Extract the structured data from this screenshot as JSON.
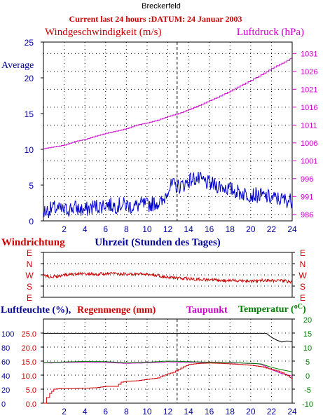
{
  "chart_data": [
    {
      "type": "line",
      "station": "Breckerfeld",
      "title": "Current last 24 hours :DATUM: 24 Januar 2003",
      "left_label": "Windgeschwindigkeit (m/s)",
      "right_label": "Luftdruck (hPa)",
      "average_label": "Average",
      "xlabel": "Uhrzeit (Stunden des Tages)",
      "xlim": [
        0,
        24
      ],
      "xticks": [
        "2",
        "4",
        "6",
        "8",
        "10",
        "12",
        "14",
        "16",
        "18",
        "20",
        "22",
        "24"
      ],
      "ylim_left": [
        0,
        25
      ],
      "yticks_left": [
        "0",
        "5",
        "10",
        "15",
        "20",
        "25"
      ],
      "ylim_right": [
        984.2,
        1034.2
      ],
      "yticks_right": [
        "986",
        "991",
        "996",
        "1001",
        "1006",
        "1011",
        "1016",
        "1021",
        "1026",
        "1031"
      ],
      "now_marker_x": 12.9,
      "series": [
        {
          "name": "Windgeschwindigkeit",
          "axis": "left",
          "color": "#0000cc",
          "x": [
            0,
            0.5,
            1,
            1.5,
            2,
            2.5,
            3,
            3.5,
            4,
            4.5,
            5,
            5.5,
            6,
            6.5,
            7,
            7.5,
            8,
            8.5,
            9,
            9.5,
            10,
            10.5,
            11,
            11.5,
            12,
            12.5,
            13,
            13.5,
            14,
            14.5,
            15,
            15.5,
            16,
            16.5,
            17,
            17.5,
            18,
            18.5,
            19,
            19.5,
            20,
            20.5,
            21,
            21.5,
            22,
            22.5,
            23,
            23.5,
            24
          ],
          "y": [
            1.3,
            1.5,
            1.8,
            1.6,
            1.4,
            1.7,
            1.9,
            1.6,
            1.5,
            1.8,
            2.1,
            2.0,
            2.4,
            2.2,
            2.1,
            2.3,
            2.2,
            2.0,
            2.1,
            2.3,
            2.2,
            2.4,
            2.6,
            2.5,
            4.5,
            5.0,
            4.8,
            5.0,
            5.6,
            5.9,
            5.8,
            5.5,
            5.2,
            5.0,
            4.9,
            4.7,
            4.4,
            4.2,
            3.9,
            3.8,
            3.7,
            3.6,
            3.5,
            3.4,
            3.2,
            3.1,
            3.0,
            2.9,
            2.8
          ]
        },
        {
          "name": "Luftdruck",
          "axis": "right",
          "color": "#cc00cc",
          "x": [
            0,
            1,
            2,
            3,
            4,
            5,
            6,
            7,
            8,
            9,
            10,
            11,
            12,
            13,
            14,
            15,
            16,
            17,
            18,
            19,
            20,
            21,
            22,
            23,
            24
          ],
          "y": [
            1004.4,
            1004.9,
            1005.4,
            1006.4,
            1007.0,
            1007.9,
            1008.7,
            1009.3,
            1010.0,
            1011.0,
            1011.6,
            1012.4,
            1013.4,
            1014.2,
            1015.3,
            1016.5,
            1017.8,
            1019.1,
            1020.5,
            1022.0,
            1023.5,
            1025.1,
            1026.8,
            1028.3,
            1029.8
          ]
        }
      ]
    },
    {
      "type": "line",
      "title": "Windrichtung",
      "xlim": [
        0,
        24
      ],
      "ylim": [
        0,
        4
      ],
      "yticks": [
        "E",
        "N",
        "W",
        "S",
        "E"
      ],
      "yticks_right": [
        "E",
        "N",
        "W",
        "S",
        "E"
      ],
      "series": [
        {
          "name": "Windrichtung",
          "color": "#cc0000",
          "x": [
            0,
            1,
            2,
            3,
            4,
            5,
            6,
            7,
            8,
            9,
            10,
            11,
            12,
            13,
            14,
            15,
            16,
            17,
            18,
            19,
            20,
            21,
            22,
            23,
            24
          ],
          "y": [
            2.1,
            2.2,
            2.0,
            1.95,
            1.9,
            1.95,
            1.9,
            1.9,
            1.95,
            1.95,
            1.95,
            2.05,
            2.2,
            2.3,
            2.35,
            2.4,
            2.45,
            2.5,
            2.5,
            2.5,
            2.55,
            2.5,
            2.5,
            2.55,
            2.6
          ]
        }
      ]
    },
    {
      "type": "line",
      "labels": {
        "humidity": "Luftfeuchte (%),",
        "rain": "Regenmenge (mm)",
        "dewpoint": "Taupunkt",
        "temperature": "Temperatur (",
        "degree": "oC",
        "temperature_close": ")"
      },
      "xlim": [
        0,
        24
      ],
      "xticks": [
        "2",
        "4",
        "6",
        "8",
        "10",
        "12",
        "14",
        "16",
        "18",
        "20",
        "22",
        "24"
      ],
      "humidity_ticks": [
        "0",
        "20",
        "40",
        "60",
        "80",
        "100"
      ],
      "rain_ticks": [
        "0.0",
        "5.0",
        "10.0",
        "15.0",
        "20.0",
        "25.0"
      ],
      "temperature_ticks": [
        "-10",
        "-5",
        "0",
        "5",
        "10",
        "15",
        "20"
      ],
      "ylim_rain": [
        0,
        30
      ],
      "ylim_temperature": [
        -10,
        20
      ],
      "now_marker_x": 12.9,
      "series": [
        {
          "name": "Luftfeuchte",
          "axis": "temperature",
          "color": "#000000",
          "x": [
            0,
            2,
            4,
            6,
            8,
            10,
            12,
            14,
            16,
            18,
            20,
            21.5,
            22,
            22.5,
            23,
            23.5,
            24
          ],
          "y": [
            14.9,
            14.9,
            14.9,
            14.9,
            14.9,
            14.9,
            14.9,
            14.9,
            14.9,
            14.9,
            14.9,
            14.9,
            13.5,
            12.5,
            11.8,
            12.2,
            11.9
          ]
        },
        {
          "name": "Regenmenge",
          "axis": "rain",
          "color": "#cc0000",
          "x": [
            0,
            0.3,
            0.6,
            1.0,
            1.5,
            3,
            5,
            6,
            7,
            7.5,
            8,
            9,
            10,
            11,
            12,
            12.5,
            13,
            13.5,
            14,
            15,
            16,
            17,
            18,
            19,
            20,
            21,
            22,
            22.5,
            23,
            23.5,
            24
          ],
          "y": [
            0,
            2.0,
            3.5,
            5.0,
            5.2,
            5.2,
            5.5,
            6.0,
            6.0,
            7.5,
            7.8,
            8.0,
            8.5,
            9.0,
            10.5,
            11.0,
            12.0,
            13.0,
            13.8,
            14.2,
            14.3,
            14.2,
            14.0,
            13.8,
            13.5,
            13.0,
            12.0,
            11.5,
            10.8,
            9.8,
            8.8
          ]
        },
        {
          "name": "Taupunkt",
          "axis": "temperature",
          "color": "#cc00cc",
          "x": [
            0,
            2,
            4,
            6,
            8,
            10,
            12,
            14,
            16,
            18,
            20,
            21,
            22,
            23,
            24
          ],
          "y": [
            4.3,
            4.5,
            4.6,
            4.5,
            4.2,
            4.4,
            4.7,
            4.6,
            4.5,
            4.4,
            4.2,
            3.9,
            2.0,
            0.6,
            -0.4
          ]
        },
        {
          "name": "Temperatur",
          "axis": "temperature",
          "color": "#008000",
          "x": [
            0,
            2,
            4,
            6,
            8,
            10,
            12,
            14,
            16,
            18,
            20,
            21,
            22,
            23,
            24
          ],
          "y": [
            4.4,
            4.7,
            4.9,
            4.8,
            4.4,
            4.6,
            5.0,
            4.8,
            4.6,
            4.5,
            4.2,
            4.0,
            2.8,
            1.9,
            1.2
          ]
        }
      ]
    }
  ]
}
